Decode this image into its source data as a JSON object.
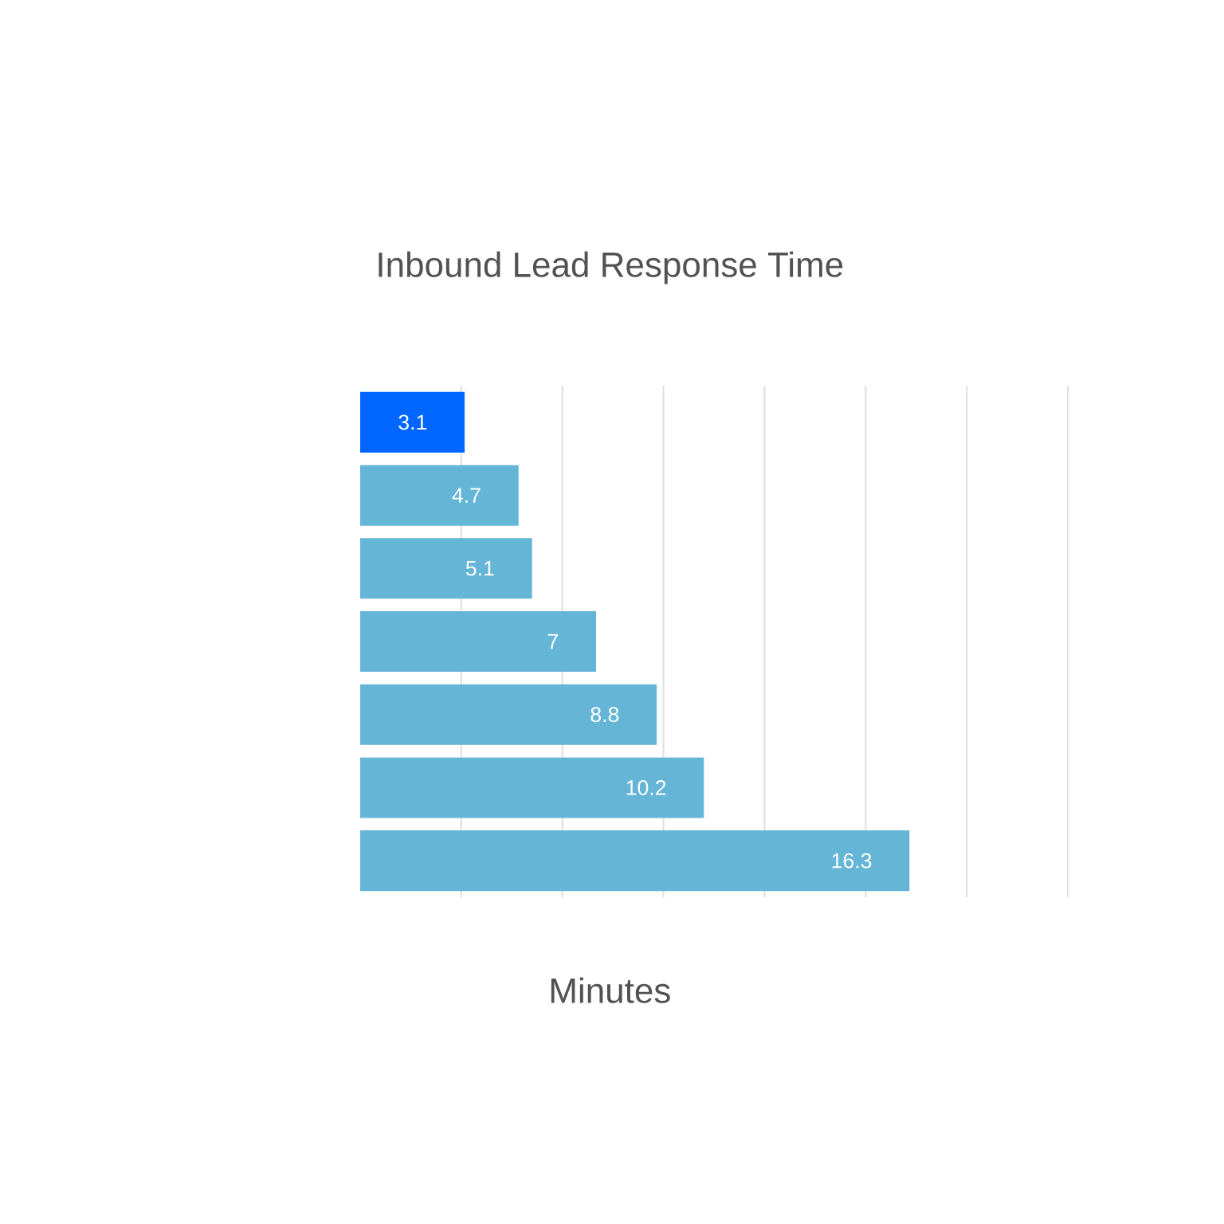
{
  "chart_data": {
    "type": "bar",
    "orientation": "horizontal",
    "title": "Inbound Lead Response Time",
    "xlabel": "Minutes",
    "categories": [
      null,
      null,
      null,
      null,
      null,
      null,
      null
    ],
    "values": [
      3.1,
      4.7,
      5.1,
      7,
      8.8,
      10.2,
      16.3
    ],
    "colors": [
      "#0066ff",
      "#65b5d7",
      "#65b5d7",
      "#65b5d7",
      "#65b5d7",
      "#65b5d7",
      "#65b5d7"
    ],
    "xlim": [
      0,
      21
    ],
    "xticks": [
      {
        "value": 3,
        "label": null
      },
      {
        "value": 6,
        "label": null
      },
      {
        "value": 9,
        "label": null
      },
      {
        "value": 12,
        "label": null
      },
      {
        "value": 15,
        "label": null
      },
      {
        "value": 18,
        "label": null
      },
      {
        "value": 21,
        "label": null
      }
    ],
    "grid": "x",
    "data_labels": true
  }
}
